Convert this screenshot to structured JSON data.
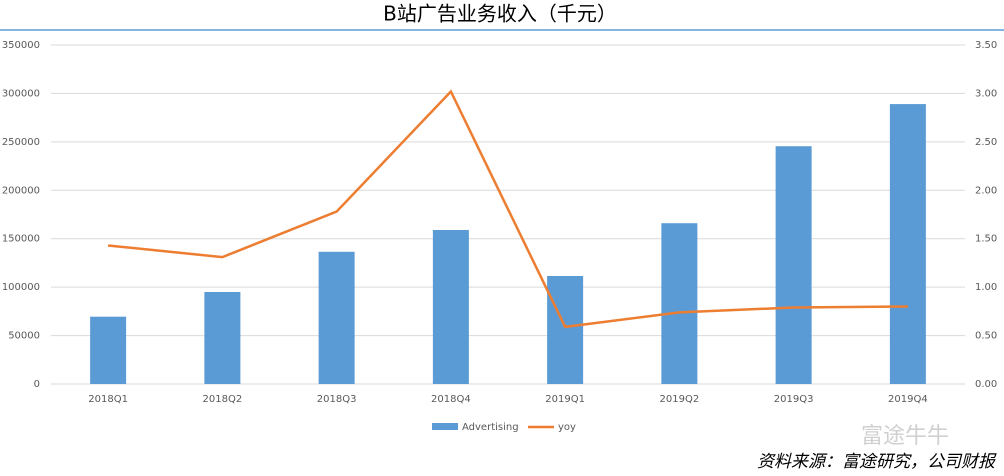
{
  "chart_data": {
    "type": "bar-line",
    "title": "B站广告业务收入（千元）",
    "categories": [
      "2018Q1",
      "2018Q2",
      "2018Q3",
      "2018Q4",
      "2019Q1",
      "2019Q2",
      "2019Q3",
      "2019Q4"
    ],
    "series": [
      {
        "name": "Advertising",
        "type": "bar",
        "color": "#5b9bd5",
        "values": [
          69500,
          95000,
          136500,
          159000,
          111500,
          166000,
          245500,
          289000
        ]
      },
      {
        "name": "yoy",
        "type": "line",
        "axis": "y2",
        "color": "#ed7d31",
        "values": [
          1.43,
          1.31,
          1.78,
          3.02,
          0.59,
          0.74,
          0.79,
          0.8
        ]
      }
    ],
    "ylim": [
      0,
      350000
    ],
    "yticks": [
      0,
      50000,
      100000,
      150000,
      200000,
      250000,
      300000,
      350000
    ],
    "y2lim": [
      0,
      3.5
    ],
    "y2ticks": [
      {
        "value": 0,
        "label": "0.00"
      },
      {
        "value": 0.5,
        "label": "0.50"
      },
      {
        "value": 1,
        "label": "1.00"
      },
      {
        "value": 1.5,
        "label": "1.50"
      },
      {
        "value": 2,
        "label": "2.00"
      },
      {
        "value": 2.5,
        "label": "2.50"
      },
      {
        "value": 3,
        "label": "3.00"
      },
      {
        "value": 3.5,
        "label": "3.50"
      }
    ],
    "grid": true,
    "legend": "bottom",
    "source": "资料来源：富途研究，公司财报",
    "watermark": "富途牛牛"
  }
}
